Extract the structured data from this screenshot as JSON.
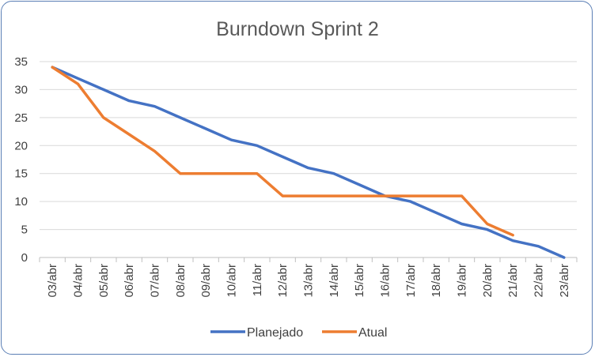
{
  "chart_data": {
    "type": "line",
    "title": "Burndown Sprint 2",
    "xlabel": "",
    "ylabel": "",
    "categories": [
      "03/abr",
      "04/abr",
      "05/abr",
      "06/abr",
      "07/abr",
      "08/abr",
      "09/abr",
      "10/abr",
      "11/abr",
      "12/abr",
      "13/abr",
      "14/abr",
      "15/abr",
      "16/abr",
      "17/abr",
      "18/abr",
      "19/abr",
      "20/abr",
      "21/abr",
      "22/abr",
      "23/abr"
    ],
    "ylim": [
      0,
      35
    ],
    "yticks": [
      0,
      5,
      10,
      15,
      20,
      25,
      30,
      35
    ],
    "grid": true,
    "legend_position": "bottom",
    "series": [
      {
        "name": "Planejado",
        "color": "#4472c4",
        "values": [
          34,
          32,
          30,
          28,
          27,
          25,
          23,
          21,
          20,
          18,
          16,
          15,
          13,
          11,
          10,
          8,
          6,
          5,
          3,
          2,
          0
        ]
      },
      {
        "name": "Atual",
        "color": "#ed7d31",
        "values": [
          34,
          31,
          25,
          22,
          19,
          15,
          15,
          15,
          15,
          11,
          11,
          11,
          11,
          11,
          11,
          11,
          11,
          6,
          4,
          null,
          null
        ]
      }
    ]
  }
}
